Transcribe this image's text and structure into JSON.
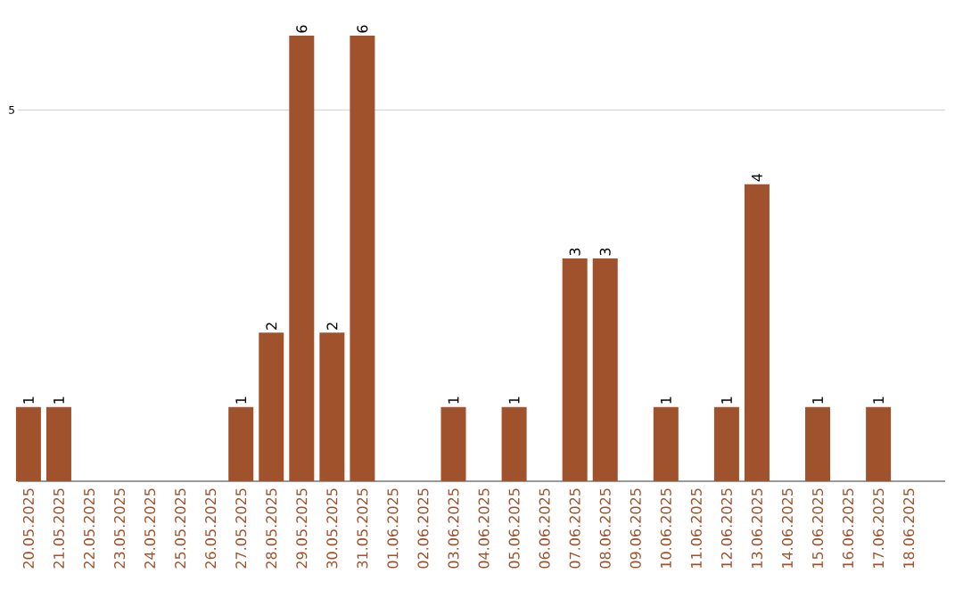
{
  "chart_data": {
    "type": "bar",
    "categories": [
      "20.05.2025",
      "21.05.2025",
      "22.05.2025",
      "23.05.2025",
      "24.05.2025",
      "25.05.2025",
      "26.05.2025",
      "27.05.2025",
      "28.05.2025",
      "29.05.2025",
      "30.05.2025",
      "31.05.2025",
      "01.06.2025",
      "02.06.2025",
      "03.06.2025",
      "04.06.2025",
      "05.06.2025",
      "06.06.2025",
      "07.06.2025",
      "08.06.2025",
      "09.06.2025",
      "10.06.2025",
      "11.06.2025",
      "12.06.2025",
      "13.06.2025",
      "14.06.2025",
      "15.06.2025",
      "16.06.2025",
      "17.06.2025",
      "18.06.2025"
    ],
    "values": [
      1,
      1,
      0,
      0,
      0,
      0,
      0,
      1,
      2,
      6,
      2,
      6,
      0,
      0,
      1,
      0,
      1,
      0,
      3,
      3,
      0,
      1,
      0,
      1,
      4,
      0,
      1,
      0,
      1,
      0
    ],
    "value_labels": [
      "1",
      "1",
      null,
      null,
      null,
      null,
      null,
      "1",
      "2",
      "6",
      "2",
      "6",
      null,
      null,
      "1",
      null,
      "1",
      null,
      "3",
      "3",
      null,
      "1",
      null,
      "1",
      "4",
      null,
      "1",
      null,
      "1",
      null
    ],
    "color": "#a0522d",
    "ylim": [
      0,
      6
    ],
    "yticks": [
      5
    ],
    "grid": "y"
  }
}
